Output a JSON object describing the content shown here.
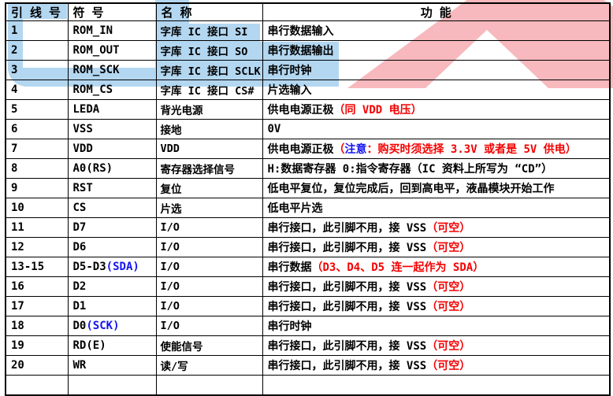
{
  "colors": {
    "k": "#000000",
    "r": "#f40000",
    "b": "#1414f0",
    "watermark_blue": "#b3d7f1",
    "watermark_pink": "#f7b9bd",
    "border": "#000000",
    "background": "#ffffff"
  },
  "watermark": {
    "blue_logo": "u-shape-logo-fragment",
    "pink_logo": "a-mountain-logo-fragment"
  },
  "table": {
    "headers": [
      "引 线 号",
      "符 号",
      "名 称",
      "功 能"
    ],
    "rows": [
      {
        "pin": "1",
        "symbol": [
          [
            "k",
            "ROM_IN"
          ]
        ],
        "name": "字库 IC 接口 SI",
        "func": [
          [
            "k",
            "串行数据输入"
          ]
        ]
      },
      {
        "pin": "2",
        "symbol": [
          [
            "k",
            "ROM_OUT"
          ]
        ],
        "name": "字库 IC 接口 SO",
        "func": [
          [
            "k",
            "串行数据输出"
          ]
        ]
      },
      {
        "pin": "3",
        "symbol": [
          [
            "k",
            "ROM_SCK"
          ]
        ],
        "name": "字库 IC 接口 SCLK",
        "func": [
          [
            "k",
            "串行时钟"
          ]
        ]
      },
      {
        "pin": "4",
        "symbol": [
          [
            "k",
            "ROM_CS"
          ]
        ],
        "name": "字库 IC 接口 CS#",
        "func": [
          [
            "k",
            "片选输入"
          ]
        ]
      },
      {
        "pin": "5",
        "symbol": [
          [
            "k",
            "LEDA"
          ]
        ],
        "name": "背光电源",
        "func": [
          [
            "k",
            "供电电源正极"
          ],
          [
            "r",
            "（同 VDD 电压）"
          ]
        ]
      },
      {
        "pin": "6",
        "symbol": [
          [
            "k",
            "VSS"
          ]
        ],
        "name": "接地",
        "func": [
          [
            "k",
            "0V"
          ]
        ]
      },
      {
        "pin": "7",
        "symbol": [
          [
            "k",
            "VDD"
          ]
        ],
        "name": "VDD",
        "func": [
          [
            "k",
            "供电电源正极"
          ],
          [
            "r",
            "（"
          ],
          [
            "b",
            "注意"
          ],
          [
            "r",
            "：购买时须选择 3.3V 或者是 5V 供电）"
          ]
        ]
      },
      {
        "pin": "8",
        "symbol": [
          [
            "k",
            "A0(RS)"
          ]
        ],
        "name": "寄存器选择信号",
        "func": [
          [
            "k",
            "H:数据寄存器 0:指令寄存器（IC 资料上所写为 “CD”）"
          ]
        ]
      },
      {
        "pin": "9",
        "symbol": [
          [
            "k",
            "RST"
          ]
        ],
        "name": "复位",
        "func": [
          [
            "k",
            "低电平复位，复位完成后，回到高电平，液晶模块开始工作"
          ]
        ]
      },
      {
        "pin": "10",
        "symbol": [
          [
            "k",
            "CS"
          ]
        ],
        "name": "片选",
        "func": [
          [
            "k",
            "低电平片选"
          ]
        ]
      },
      {
        "pin": "11",
        "symbol": [
          [
            "k",
            "D7"
          ]
        ],
        "name": "I/O",
        "func": [
          [
            "k",
            "串行接口，此引脚不用，接 VSS"
          ],
          [
            "r",
            "（可空）"
          ]
        ]
      },
      {
        "pin": "12",
        "symbol": [
          [
            "k",
            "D6"
          ]
        ],
        "name": "I/O",
        "func": [
          [
            "k",
            "串行接口，此引脚不用，接 VSS"
          ],
          [
            "r",
            "（可空）"
          ]
        ]
      },
      {
        "pin": "13-15",
        "symbol": [
          [
            "k",
            "D5-D3"
          ],
          [
            "b",
            "(SDA)"
          ]
        ],
        "name": "I/O",
        "func": [
          [
            "k",
            "串行数据"
          ],
          [
            "r",
            "（D3、D4、D5 连一起作为 SDA）"
          ]
        ]
      },
      {
        "pin": "16",
        "symbol": [
          [
            "k",
            "D2"
          ]
        ],
        "name": "I/O",
        "func": [
          [
            "k",
            "串行接口，此引脚不用，接 VSS"
          ],
          [
            "r",
            "（可空）"
          ]
        ]
      },
      {
        "pin": "17",
        "symbol": [
          [
            "k",
            "D1"
          ]
        ],
        "name": "I/O",
        "func": [
          [
            "k",
            "串行接口，此引脚不用，接 VSS"
          ],
          [
            "r",
            "（可空）"
          ]
        ]
      },
      {
        "pin": "18",
        "symbol": [
          [
            "k",
            "D0"
          ],
          [
            "b",
            "(SCK)"
          ]
        ],
        "name": "I/O",
        "func": [
          [
            "k",
            "串行时钟"
          ]
        ]
      },
      {
        "pin": "19",
        "symbol": [
          [
            "k",
            "RD(E)"
          ]
        ],
        "name": "使能信号",
        "func": [
          [
            "k",
            "串行接口，此引脚不用，接 VSS"
          ],
          [
            "r",
            "（可空）"
          ]
        ]
      },
      {
        "pin": "20",
        "symbol": [
          [
            "k",
            "WR"
          ]
        ],
        "name": "读/写",
        "func": [
          [
            "k",
            "串行接口，此引脚不用，接 VSS"
          ],
          [
            "r",
            "（可空）"
          ]
        ]
      }
    ]
  }
}
